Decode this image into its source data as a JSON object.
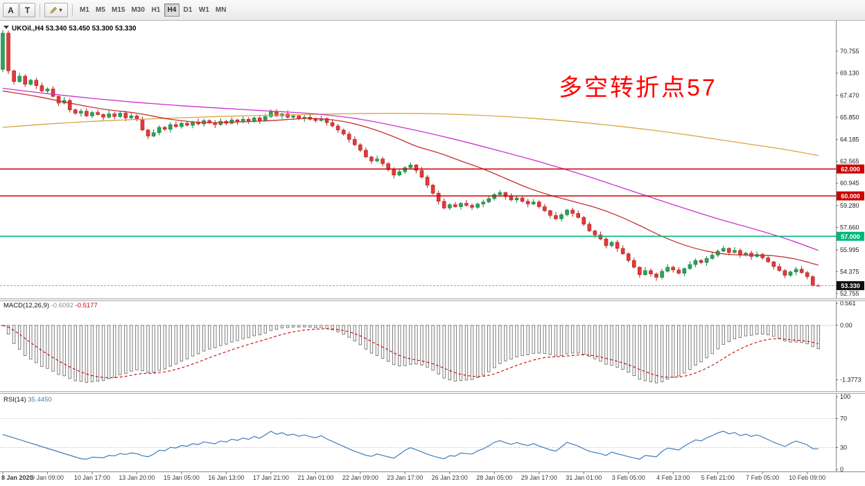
{
  "toolbar": {
    "tool_a_label": "A",
    "tool_t_label": "T",
    "timeframes": [
      "M1",
      "M5",
      "M15",
      "M30",
      "H1",
      "H4",
      "D1",
      "W1",
      "MN"
    ],
    "active_timeframe": "H4"
  },
  "chart": {
    "symbol_header": "UKOil.,H4 53.340 53.450 53.300 53.330",
    "annotation_text": "多空转折点57",
    "annotation_color": "#ff0000",
    "current_price_label": "53.330",
    "price_axis_labels": [
      "70.755",
      "69.130",
      "67.470",
      "65.850",
      "64.185",
      "62.565",
      "60.945",
      "59.280",
      "57.660",
      "55.995",
      "54.375",
      "52.755"
    ],
    "hlines": [
      {
        "price": 62.0,
        "label": "62.000",
        "color": "#cc0000"
      },
      {
        "price": 60.0,
        "label": "60.000",
        "color": "#cc0000"
      },
      {
        "price": 57.0,
        "label": "57.000",
        "color": "#00b87c"
      }
    ]
  },
  "macd_panel": {
    "header_label": "MACD(12,26,9)",
    "value": "-0.6092",
    "signal_value": "-0.5177",
    "scale_labels": [
      {
        "text": "0.561",
        "value": 0.561
      },
      {
        "text": "0.00",
        "value": 0.0
      },
      {
        "text": "-1.3773",
        "value": -1.3773
      }
    ]
  },
  "rsi_panel": {
    "header_label": "RSI(14)",
    "value": "35.4450",
    "scale_labels": [
      {
        "text": "100",
        "value": 100
      },
      {
        "text": "70",
        "value": 70
      },
      {
        "text": "30",
        "value": 30
      },
      {
        "text": "0",
        "value": 0
      }
    ],
    "levels": [
      70,
      30
    ]
  },
  "time_axis_labels": [
    "8 Jan 2020",
    "9 Jan 09:00",
    "10 Jan 17:00",
    "13 Jan 20:00",
    "15 Jan 05:00",
    "16 Jan 13:00",
    "17 Jan 21:00",
    "21 Jan 01:00",
    "22 Jan 09:00",
    "23 Jan 17:00",
    "26 Jan 23:00",
    "28 Jan 05:00",
    "29 Jan 17:00",
    "31 Jan 01:00",
    "3 Feb 05:00",
    "4 Feb 13:00",
    "5 Feb 21:00",
    "7 Feb 05:00",
    "10 Feb 09:00"
  ],
  "colors": {
    "candle_up": "#28a35c",
    "candle_up_border": "#177f42",
    "candle_down": "#e03a3a",
    "candle_down_border": "#b32020",
    "ma_fast": "#c62f2f",
    "ma_mid": "#cc33cc",
    "ma_slow": "#d9a441",
    "macd_hist": "#6e6e6e",
    "macd_signal": "#cc0000",
    "rsi_line": "#3d7dbf",
    "axis_text": "#1c1c1c",
    "time_text": "#3a3a3a"
  },
  "chart_data": {
    "type": "candlestick",
    "symbol": "UKOil",
    "timeframe": "H4",
    "ylim": [
      52.3,
      72.9
    ],
    "indicators": {
      "macd": {
        "fast": 12,
        "slow": 26,
        "signal": 9
      },
      "rsi": {
        "period": 14
      }
    },
    "ohlc": [
      [
        69.4,
        72.35,
        69.2,
        72.1
      ],
      [
        72.1,
        72.3,
        69.05,
        69.3
      ],
      [
        69.3,
        69.38,
        68.28,
        68.5
      ],
      [
        68.5,
        69.15,
        68.4,
        68.9
      ],
      [
        68.9,
        69.05,
        68.1,
        68.3
      ],
      [
        68.3,
        68.7,
        68.18,
        68.6
      ],
      [
        68.6,
        68.78,
        67.95,
        68.2
      ],
      [
        68.2,
        68.42,
        67.71,
        67.8
      ],
      [
        67.8,
        68.07,
        67.65,
        67.95
      ],
      [
        67.95,
        68.15,
        67.32,
        67.4
      ],
      [
        67.4,
        67.48,
        66.68,
        66.9
      ],
      [
        66.9,
        67.35,
        66.8,
        67.1
      ],
      [
        67.1,
        67.25,
        66.2,
        66.4
      ],
      [
        66.4,
        66.5,
        66.03,
        66.15
      ],
      [
        66.15,
        66.48,
        65.9,
        66.3
      ],
      [
        66.3,
        66.52,
        65.86,
        65.95
      ],
      [
        65.95,
        66.32,
        65.8,
        66.2
      ],
      [
        66.2,
        66.4,
        65.97,
        66.05
      ],
      [
        66.05,
        66.13,
        65.63,
        65.85
      ],
      [
        65.85,
        66.35,
        65.75,
        66.1
      ],
      [
        66.1,
        66.25,
        65.7,
        65.9
      ],
      [
        65.9,
        66.25,
        65.78,
        66.15
      ],
      [
        66.15,
        66.33,
        65.55,
        65.8
      ],
      [
        65.8,
        66.17,
        65.71,
        65.95
      ],
      [
        65.95,
        66.07,
        65.55,
        65.7
      ],
      [
        65.7,
        65.9,
        64.82,
        64.9
      ],
      [
        64.9,
        64.98,
        64.23,
        64.45
      ],
      [
        64.45,
        64.95,
        64.35,
        64.7
      ],
      [
        64.7,
        65.25,
        64.5,
        65.1
      ],
      [
        65.1,
        65.2,
        64.83,
        64.95
      ],
      [
        64.95,
        65.48,
        64.7,
        65.3
      ],
      [
        65.3,
        65.52,
        65.06,
        65.15
      ],
      [
        65.15,
        65.52,
        65.0,
        65.4
      ],
      [
        65.4,
        65.6,
        65.17,
        65.25
      ],
      [
        65.25,
        65.58,
        65.03,
        65.5
      ],
      [
        65.5,
        65.75,
        65.25,
        65.35
      ],
      [
        65.35,
        65.75,
        65.15,
        65.6
      ],
      [
        65.6,
        65.7,
        65.33,
        65.45
      ],
      [
        65.45,
        65.63,
        65.05,
        65.3
      ],
      [
        65.3,
        65.77,
        65.21,
        65.55
      ],
      [
        65.55,
        65.67,
        65.25,
        65.4
      ],
      [
        65.4,
        65.85,
        65.32,
        65.65
      ],
      [
        65.65,
        65.73,
        65.28,
        65.5
      ],
      [
        65.5,
        65.95,
        65.4,
        65.7
      ],
      [
        65.7,
        65.85,
        65.35,
        65.55
      ],
      [
        65.55,
        65.9,
        65.43,
        65.8
      ],
      [
        65.8,
        65.98,
        65.35,
        65.6
      ],
      [
        65.6,
        66.12,
        65.51,
        65.9
      ],
      [
        65.9,
        66.45,
        65.78,
        66.25
      ],
      [
        66.25,
        66.45,
        65.87,
        65.95
      ],
      [
        65.95,
        66.18,
        65.73,
        66.1
      ],
      [
        66.1,
        66.35,
        65.75,
        65.85
      ],
      [
        65.85,
        66.1,
        65.65,
        65.95
      ],
      [
        65.95,
        66.05,
        65.63,
        65.75
      ],
      [
        65.75,
        66.03,
        65.5,
        65.85
      ],
      [
        65.85,
        66.07,
        65.61,
        65.7
      ],
      [
        65.7,
        65.82,
        65.45,
        65.6
      ],
      [
        65.6,
        65.95,
        65.52,
        65.75
      ],
      [
        65.75,
        65.83,
        65.23,
        65.45
      ],
      [
        65.45,
        65.7,
        65.1,
        65.2
      ],
      [
        65.2,
        65.35,
        64.7,
        64.9
      ],
      [
        64.9,
        65.0,
        64.48,
        64.6
      ],
      [
        64.6,
        64.78,
        63.95,
        64.2
      ],
      [
        64.2,
        64.42,
        63.71,
        63.8
      ],
      [
        63.8,
        63.92,
        63.25,
        63.4
      ],
      [
        63.4,
        63.6,
        62.82,
        62.9
      ],
      [
        62.9,
        62.98,
        62.38,
        62.6
      ],
      [
        62.6,
        63.0,
        62.5,
        62.75
      ],
      [
        62.75,
        62.9,
        62.2,
        62.4
      ],
      [
        62.4,
        62.5,
        61.83,
        61.95
      ],
      [
        61.95,
        62.13,
        61.3,
        61.55
      ],
      [
        61.55,
        62.02,
        61.46,
        61.8
      ],
      [
        61.8,
        62.22,
        61.65,
        62.1
      ],
      [
        62.1,
        62.5,
        62.02,
        62.3
      ],
      [
        62.3,
        62.38,
        61.68,
        61.9
      ],
      [
        61.9,
        62.15,
        61.3,
        61.4
      ],
      [
        61.4,
        61.55,
        60.6,
        60.8
      ],
      [
        60.8,
        60.9,
        60.08,
        60.2
      ],
      [
        60.2,
        60.38,
        59.35,
        59.6
      ],
      [
        59.6,
        59.82,
        59.01,
        59.1
      ],
      [
        59.1,
        59.47,
        58.95,
        59.35
      ],
      [
        59.35,
        59.55,
        59.12,
        59.2
      ],
      [
        59.2,
        59.53,
        58.98,
        59.45
      ],
      [
        59.45,
        59.7,
        59.2,
        59.3
      ],
      [
        59.3,
        59.45,
        58.95,
        59.15
      ],
      [
        59.15,
        59.5,
        59.03,
        59.4
      ],
      [
        59.4,
        59.73,
        59.15,
        59.55
      ],
      [
        59.55,
        60.02,
        59.46,
        59.8
      ],
      [
        59.8,
        60.22,
        59.65,
        60.1
      ],
      [
        60.1,
        60.45,
        60.02,
        60.25
      ],
      [
        60.25,
        60.33,
        59.73,
        59.95
      ],
      [
        59.95,
        60.2,
        59.6,
        59.7
      ],
      [
        59.7,
        60.0,
        59.5,
        59.85
      ],
      [
        59.85,
        59.95,
        59.48,
        59.6
      ],
      [
        59.6,
        59.78,
        59.15,
        59.4
      ],
      [
        59.4,
        59.77,
        59.31,
        59.55
      ],
      [
        59.55,
        59.67,
        59.05,
        59.2
      ],
      [
        59.2,
        59.4,
        58.82,
        58.9
      ],
      [
        58.9,
        58.98,
        58.33,
        58.55
      ],
      [
        58.55,
        58.8,
        58.2,
        58.3
      ],
      [
        58.3,
        58.75,
        58.1,
        58.6
      ],
      [
        58.6,
        59.05,
        58.48,
        58.95
      ],
      [
        58.95,
        59.13,
        58.45,
        58.7
      ],
      [
        58.7,
        58.92,
        58.31,
        58.4
      ],
      [
        58.4,
        58.52,
        57.75,
        57.9
      ],
      [
        57.9,
        58.1,
        57.32,
        57.4
      ],
      [
        57.4,
        57.48,
        56.88,
        57.1
      ],
      [
        57.1,
        57.35,
        56.7,
        56.8
      ],
      [
        56.8,
        56.95,
        56.1,
        56.3
      ],
      [
        56.3,
        56.65,
        56.18,
        56.55
      ],
      [
        56.55,
        56.73,
        55.85,
        56.1
      ],
      [
        56.1,
        56.32,
        55.61,
        55.7
      ],
      [
        55.7,
        55.82,
        55.05,
        55.2
      ],
      [
        55.2,
        55.4,
        54.62,
        54.7
      ],
      [
        54.7,
        54.78,
        53.93,
        54.15
      ],
      [
        54.15,
        54.7,
        54.05,
        54.45
      ],
      [
        54.45,
        54.6,
        54.0,
        54.2
      ],
      [
        54.2,
        54.3,
        53.7,
        53.95
      ],
      [
        53.95,
        54.58,
        53.8,
        54.4
      ],
      [
        54.4,
        54.92,
        54.31,
        54.7
      ],
      [
        54.7,
        54.82,
        54.3,
        54.5
      ],
      [
        54.5,
        54.7,
        54.17,
        54.25
      ],
      [
        54.25,
        54.68,
        54.03,
        54.6
      ],
      [
        54.6,
        55.15,
        54.5,
        54.9
      ],
      [
        54.9,
        55.35,
        54.7,
        55.2
      ],
      [
        55.2,
        55.3,
        54.93,
        55.05
      ],
      [
        55.05,
        55.53,
        54.8,
        55.35
      ],
      [
        55.35,
        55.82,
        55.26,
        55.6
      ],
      [
        55.6,
        56.02,
        55.45,
        55.9
      ],
      [
        55.9,
        56.3,
        55.82,
        56.1
      ],
      [
        56.1,
        56.18,
        55.58,
        55.8
      ],
      [
        55.8,
        56.2,
        55.7,
        55.95
      ],
      [
        55.95,
        56.1,
        55.4,
        55.6
      ],
      [
        55.6,
        55.85,
        55.48,
        55.75
      ],
      [
        55.75,
        55.93,
        55.25,
        55.5
      ],
      [
        55.5,
        55.87,
        55.41,
        55.65
      ],
      [
        55.65,
        55.77,
        55.25,
        55.4
      ],
      [
        55.4,
        55.6,
        55.02,
        55.1
      ],
      [
        55.1,
        55.18,
        54.53,
        54.75
      ],
      [
        54.75,
        54.97,
        54.36,
        54.45
      ],
      [
        54.45,
        54.57,
        53.9,
        54.1
      ],
      [
        54.1,
        54.45,
        53.98,
        54.35
      ],
      [
        54.35,
        54.73,
        54.1,
        54.55
      ],
      [
        54.55,
        54.77,
        54.21,
        54.3
      ],
      [
        54.3,
        54.42,
        53.8,
        54.0
      ],
      [
        54.0,
        54.1,
        53.28,
        53.34
      ],
      [
        53.34,
        53.45,
        53.3,
        53.33
      ]
    ],
    "overlays": {
      "ma_fast_red": [
        [
          0,
          67.8
        ],
        [
          6,
          67.4
        ],
        [
          12,
          66.9
        ],
        [
          18,
          66.45
        ],
        [
          24,
          66.15
        ],
        [
          30,
          65.7
        ],
        [
          36,
          65.45
        ],
        [
          42,
          65.5
        ],
        [
          48,
          65.6
        ],
        [
          54,
          65.75
        ],
        [
          58,
          65.7
        ],
        [
          62,
          65.45
        ],
        [
          66,
          65.0
        ],
        [
          70,
          64.4
        ],
        [
          74,
          63.7
        ],
        [
          78,
          63.2
        ],
        [
          82,
          62.6
        ],
        [
          86,
          62.0
        ],
        [
          90,
          61.3
        ],
        [
          94,
          60.6
        ],
        [
          98,
          60.05
        ],
        [
          102,
          59.6
        ],
        [
          106,
          59.15
        ],
        [
          110,
          58.55
        ],
        [
          114,
          57.8
        ],
        [
          118,
          57.0
        ],
        [
          122,
          56.35
        ],
        [
          126,
          55.9
        ],
        [
          130,
          55.65
        ],
        [
          134,
          55.6
        ],
        [
          138,
          55.55
        ],
        [
          142,
          55.3
        ],
        [
          146,
          54.85
        ]
      ],
      "ma_mid_magenta": [
        [
          0,
          68.0
        ],
        [
          8,
          67.6
        ],
        [
          16,
          67.25
        ],
        [
          24,
          66.95
        ],
        [
          32,
          66.7
        ],
        [
          40,
          66.5
        ],
        [
          48,
          66.3
        ],
        [
          56,
          66.1
        ],
        [
          64,
          65.7
        ],
        [
          72,
          65.05
        ],
        [
          80,
          64.3
        ],
        [
          88,
          63.45
        ],
        [
          96,
          62.55
        ],
        [
          104,
          61.55
        ],
        [
          112,
          60.45
        ],
        [
          120,
          59.35
        ],
        [
          128,
          58.3
        ],
        [
          134,
          57.6
        ],
        [
          140,
          56.85
        ],
        [
          146,
          55.95
        ]
      ],
      "ma_slow_orange": [
        [
          0,
          65.1
        ],
        [
          10,
          65.4
        ],
        [
          20,
          65.62
        ],
        [
          30,
          65.78
        ],
        [
          40,
          65.92
        ],
        [
          50,
          66.02
        ],
        [
          60,
          66.1
        ],
        [
          70,
          66.14
        ],
        [
          80,
          66.08
        ],
        [
          90,
          65.9
        ],
        [
          100,
          65.6
        ],
        [
          108,
          65.28
        ],
        [
          116,
          64.9
        ],
        [
          124,
          64.45
        ],
        [
          132,
          63.95
        ],
        [
          140,
          63.45
        ],
        [
          146,
          63.0
        ]
      ]
    }
  }
}
